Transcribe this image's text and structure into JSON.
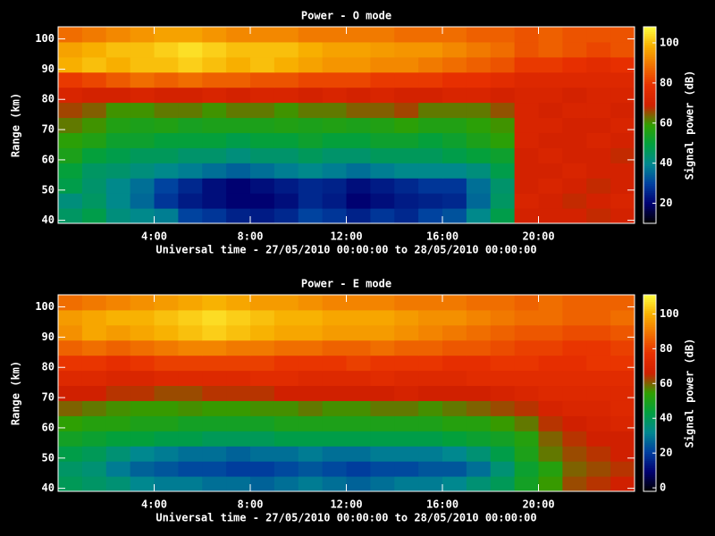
{
  "chart_data": [
    {
      "type": "heatmap",
      "title": "Power - O mode",
      "xlabel": "Universal time - 27/05/2010 00:00:00 to 28/05/2010 00:00:00",
      "ylabel": "Range (km)",
      "xbins": [
        0,
        1,
        2,
        3,
        4,
        5,
        6,
        7,
        8,
        9,
        10,
        11,
        12,
        13,
        14,
        15,
        16,
        17,
        18,
        19,
        20,
        21,
        22,
        23,
        24
      ],
      "ybins": [
        39,
        44,
        49,
        54,
        59,
        64,
        69,
        74,
        79,
        84,
        89,
        94,
        99,
        104
      ],
      "xlim": [
        0,
        24
      ],
      "ylim": [
        39,
        104
      ],
      "xticks": [
        {
          "value": 4,
          "label": "4:00"
        },
        {
          "value": 8,
          "label": "8:00"
        },
        {
          "value": 12,
          "label": "12:00"
        },
        {
          "value": 16,
          "label": "16:00"
        },
        {
          "value": 20,
          "label": "20:00"
        }
      ],
      "yticks": [
        40,
        50,
        60,
        70,
        80,
        90,
        100
      ],
      "colorbar": {
        "label": "Signal power (dB)",
        "lim": [
          10,
          108
        ],
        "ticks": [
          20,
          40,
          60,
          80,
          100
        ]
      },
      "colorscale": [
        "#000000",
        "#000070",
        "#0040a0",
        "#008890",
        "#00a040",
        "#30a000",
        "#d02000",
        "#e83000",
        "#f07000",
        "#f8b000",
        "#ffff40"
      ],
      "z": [
        [
          45,
          48,
          42,
          40,
          38,
          30,
          28,
          25,
          24,
          26,
          30,
          28,
          25,
          28,
          26,
          30,
          32,
          40,
          48,
          70,
          70,
          70,
          68,
          70
        ],
        [
          42,
          45,
          40,
          35,
          28,
          24,
          22,
          20,
          20,
          22,
          26,
          24,
          20,
          22,
          24,
          25,
          26,
          35,
          45,
          72,
          70,
          68,
          70,
          72
        ],
        [
          48,
          44,
          40,
          36,
          30,
          26,
          22,
          20,
          22,
          24,
          26,
          25,
          22,
          24,
          26,
          28,
          28,
          36,
          44,
          70,
          72,
          70,
          68,
          70
        ],
        [
          50,
          45,
          44,
          42,
          40,
          38,
          36,
          34,
          36,
          38,
          40,
          38,
          36,
          38,
          40,
          40,
          40,
          42,
          48,
          70,
          70,
          72,
          70,
          70
        ],
        [
          55,
          50,
          48,
          46,
          46,
          44,
          44,
          42,
          44,
          44,
          46,
          44,
          44,
          46,
          46,
          46,
          48,
          50,
          52,
          70,
          72,
          70,
          70,
          68
        ],
        [
          58,
          56,
          52,
          52,
          50,
          50,
          50,
          48,
          50,
          50,
          52,
          50,
          50,
          52,
          52,
          50,
          52,
          55,
          58,
          72,
          70,
          70,
          72,
          70
        ],
        [
          62,
          60,
          56,
          55,
          56,
          54,
          55,
          55,
          55,
          56,
          55,
          56,
          55,
          56,
          58,
          56,
          56,
          58,
          60,
          72,
          72,
          70,
          70,
          72
        ],
        [
          66,
          64,
          60,
          60,
          62,
          62,
          60,
          62,
          62,
          60,
          62,
          62,
          64,
          64,
          66,
          62,
          62,
          62,
          65,
          72,
          70,
          72,
          72,
          70
        ],
        [
          72,
          70,
          70,
          72,
          70,
          70,
          72,
          70,
          72,
          72,
          70,
          72,
          70,
          72,
          70,
          70,
          72,
          72,
          70,
          72,
          72,
          70,
          72,
          72
        ],
        [
          80,
          82,
          85,
          88,
          86,
          88,
          86,
          86,
          84,
          84,
          82,
          82,
          82,
          80,
          80,
          80,
          78,
          78,
          76,
          74,
          74,
          74,
          74,
          74
        ],
        [
          98,
          100,
          98,
          100,
          100,
          102,
          100,
          98,
          100,
          98,
          96,
          94,
          94,
          92,
          92,
          90,
          88,
          86,
          84,
          80,
          80,
          78,
          76,
          78
        ],
        [
          96,
          98,
          100,
          100,
          102,
          104,
          102,
          100,
          100,
          100,
          98,
          96,
          96,
          95,
          94,
          94,
          92,
          90,
          88,
          84,
          86,
          84,
          82,
          84
        ],
        [
          88,
          90,
          92,
          94,
          96,
          96,
          94,
          92,
          92,
          92,
          90,
          90,
          90,
          90,
          88,
          88,
          88,
          86,
          86,
          84,
          86,
          84,
          84,
          84
        ]
      ]
    },
    {
      "type": "heatmap",
      "title": "Power - E mode",
      "xlabel": "Universal time - 27/05/2010 00:00:00 to 28/05/2010 00:00:00",
      "ylabel": "Range (km)",
      "xbins": [
        0,
        1,
        2,
        3,
        4,
        5,
        6,
        7,
        8,
        9,
        10,
        11,
        12,
        13,
        14,
        15,
        16,
        17,
        18,
        19,
        20,
        21,
        22,
        23,
        24
      ],
      "ybins": [
        39,
        44,
        49,
        54,
        59,
        64,
        69,
        74,
        79,
        84,
        89,
        94,
        99,
        104
      ],
      "xlim": [
        0,
        24
      ],
      "ylim": [
        39,
        104
      ],
      "xticks": [
        {
          "value": 4,
          "label": "4:00"
        },
        {
          "value": 8,
          "label": "8:00"
        },
        {
          "value": 12,
          "label": "12:00"
        },
        {
          "value": 16,
          "label": "16:00"
        },
        {
          "value": 20,
          "label": "20:00"
        }
      ],
      "yticks": [
        40,
        50,
        60,
        70,
        80,
        90,
        100
      ],
      "colorbar": {
        "label": "Signal power (dB)",
        "lim": [
          -2,
          111
        ],
        "ticks": [
          0,
          20,
          40,
          60,
          80,
          100
        ]
      },
      "colorscale": [
        "#000000",
        "#000070",
        "#0040a0",
        "#008890",
        "#00a040",
        "#30a000",
        "#d02000",
        "#e83000",
        "#f07000",
        "#f8b000",
        "#ffff40"
      ],
      "z": [
        [
          40,
          38,
          36,
          32,
          30,
          30,
          28,
          28,
          26,
          28,
          30,
          28,
          26,
          28,
          30,
          30,
          32,
          36,
          40,
          48,
          55,
          62,
          64,
          66
        ],
        [
          38,
          36,
          30,
          26,
          24,
          22,
          22,
          20,
          20,
          22,
          24,
          22,
          20,
          22,
          22,
          24,
          24,
          28,
          36,
          46,
          52,
          60,
          62,
          64
        ],
        [
          42,
          40,
          36,
          32,
          30,
          28,
          28,
          26,
          28,
          28,
          30,
          28,
          28,
          30,
          30,
          30,
          32,
          36,
          42,
          50,
          58,
          62,
          64,
          66
        ],
        [
          48,
          46,
          44,
          44,
          42,
          42,
          40,
          40,
          40,
          42,
          42,
          42,
          42,
          42,
          42,
          42,
          44,
          46,
          48,
          52,
          60,
          64,
          66,
          66
        ],
        [
          54,
          52,
          52,
          50,
          50,
          48,
          48,
          48,
          48,
          50,
          50,
          50,
          50,
          50,
          50,
          50,
          52,
          52,
          55,
          58,
          64,
          66,
          68,
          70
        ],
        [
          60,
          58,
          56,
          55,
          55,
          56,
          55,
          55,
          56,
          56,
          58,
          56,
          56,
          58,
          58,
          56,
          58,
          60,
          62,
          64,
          68,
          70,
          70,
          72
        ],
        [
          66,
          66,
          64,
          64,
          62,
          62,
          64,
          64,
          64,
          66,
          66,
          66,
          66,
          66,
          68,
          66,
          66,
          66,
          68,
          70,
          72,
          72,
          72,
          72
        ],
        [
          72,
          72,
          70,
          70,
          72,
          72,
          72,
          72,
          74,
          74,
          72,
          72,
          72,
          74,
          72,
          72,
          72,
          74,
          74,
          74,
          74,
          74,
          74,
          74
        ],
        [
          78,
          78,
          76,
          78,
          80,
          80,
          80,
          80,
          80,
          78,
          78,
          78,
          80,
          78,
          78,
          78,
          76,
          76,
          78,
          78,
          76,
          76,
          78,
          78
        ],
        [
          86,
          88,
          86,
          88,
          90,
          92,
          92,
          90,
          90,
          88,
          88,
          86,
          86,
          88,
          86,
          86,
          84,
          84,
          82,
          80,
          80,
          78,
          78,
          80
        ],
        [
          94,
          98,
          96,
          98,
          100,
          102,
          104,
          102,
          100,
          98,
          98,
          96,
          96,
          96,
          94,
          92,
          90,
          88,
          86,
          84,
          84,
          82,
          82,
          84
        ],
        [
          96,
          98,
          100,
          100,
          102,
          104,
          106,
          104,
          102,
          100,
          100,
          98,
          98,
          98,
          96,
          94,
          94,
          92,
          90,
          88,
          88,
          86,
          86,
          88
        ],
        [
          88,
          90,
          92,
          94,
          96,
          98,
          100,
          98,
          96,
          96,
          94,
          92,
          92,
          92,
          90,
          90,
          90,
          88,
          88,
          86,
          88,
          86,
          86,
          86
        ]
      ]
    }
  ]
}
